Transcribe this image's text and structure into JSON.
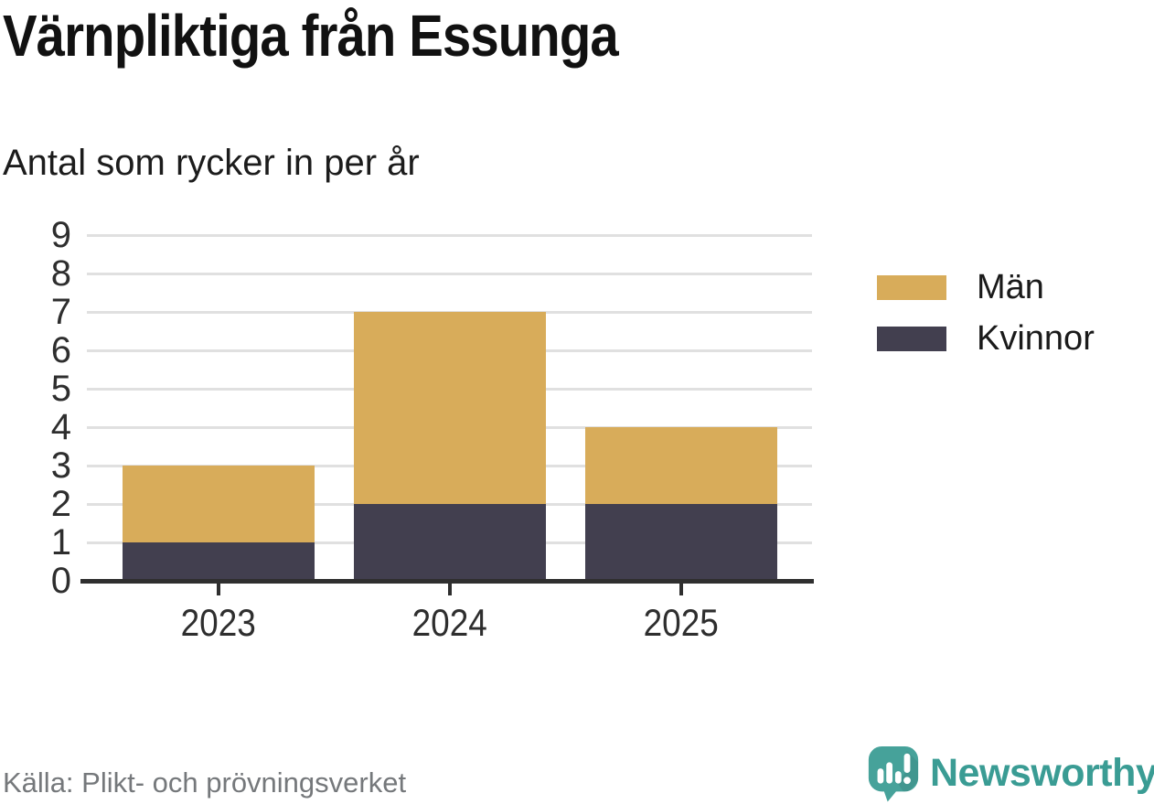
{
  "header": {
    "title": "Värnpliktiga från Essunga",
    "subtitle": "Antal som rycker in per år"
  },
  "chart_data": {
    "type": "bar",
    "stacked": true,
    "title": "Värnpliktiga från Essunga",
    "subtitle": "Antal som rycker in per år",
    "categories": [
      "2023",
      "2024",
      "2025"
    ],
    "series": [
      {
        "name": "Kvinnor",
        "color": "#423F4F",
        "values": [
          1,
          2,
          2
        ]
      },
      {
        "name": "Män",
        "color": "#D8AC5A",
        "values": [
          2,
          5,
          2
        ]
      }
    ],
    "totals": [
      3,
      7,
      4
    ],
    "xlabel": "",
    "ylabel": "",
    "ylim": [
      0,
      9
    ],
    "yticks": [
      0,
      1,
      2,
      3,
      4,
      5,
      6,
      7,
      8,
      9
    ],
    "grid": true,
    "legend_position": "right",
    "legend_order": [
      "Män",
      "Kvinnor"
    ]
  },
  "footer": {
    "source": "Källa: Plikt- och prövningsverket",
    "brand": "Newsworthy"
  },
  "colors": {
    "bar_men": "#D8AC5A",
    "bar_women": "#423F4F",
    "gridline": "#E0E0E0",
    "axis": "#2F2F2F",
    "text": "#1A1A1A",
    "source_text": "#75787B",
    "brand_teal": "#3A9C94"
  },
  "icons": {
    "brand_icon": "newsworthy-speech-bubble-bar-chart-icon"
  }
}
